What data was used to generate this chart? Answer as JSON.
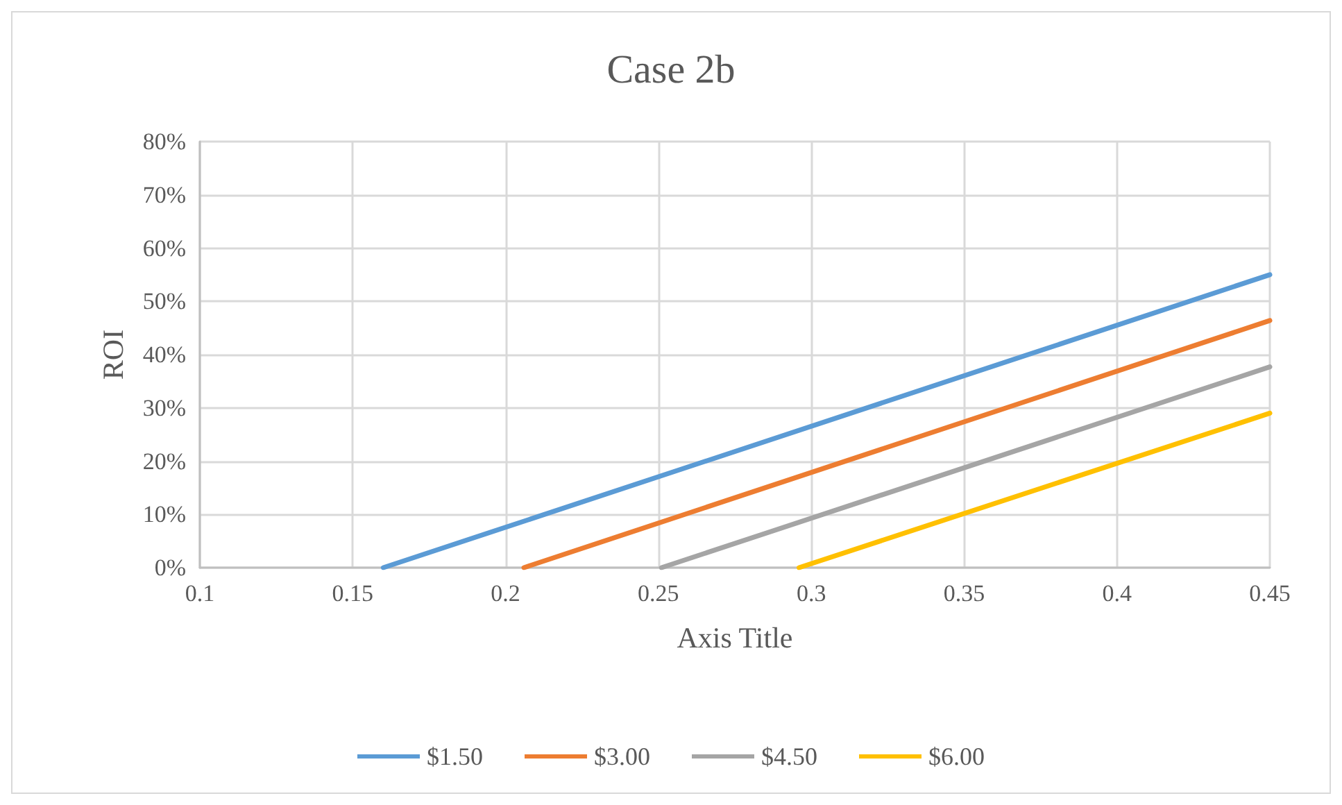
{
  "chart_data": {
    "type": "line",
    "title": "Case 2b",
    "xlabel": "Axis Title",
    "ylabel": "ROI",
    "xlim": [
      0.1,
      0.45
    ],
    "xticks": [
      0.1,
      0.15,
      0.2,
      0.25,
      0.3,
      0.35,
      0.4,
      0.45
    ],
    "ylim": [
      0,
      80
    ],
    "yticks": [
      {
        "value": 0,
        "label": "0%"
      },
      {
        "value": 10,
        "label": "10%"
      },
      {
        "value": 20,
        "label": "20%"
      },
      {
        "value": 30,
        "label": "30%"
      },
      {
        "value": 40,
        "label": "40%"
      },
      {
        "value": 50,
        "label": "50%"
      },
      {
        "value": 60,
        "label": "60%"
      },
      {
        "value": 70,
        "label": "70%"
      },
      {
        "value": 80,
        "label": "80%"
      }
    ],
    "grid": true,
    "legend": "bottom",
    "marker": "none",
    "line_style": "solid",
    "series": [
      {
        "name": "$1.50",
        "color": "#5b9bd5",
        "x": [
          0.16,
          0.45
        ],
        "values": [
          0,
          55
        ]
      },
      {
        "name": "$3.00",
        "color": "#ed7d31",
        "x": [
          0.206,
          0.45
        ],
        "values": [
          0,
          46.4
        ]
      },
      {
        "name": "$4.50",
        "color": "#a5a5a5",
        "x": [
          0.251,
          0.45
        ],
        "values": [
          0,
          37.7
        ]
      },
      {
        "name": "$6.00",
        "color": "#ffc000",
        "x": [
          0.296,
          0.45
        ],
        "values": [
          0,
          29
        ]
      }
    ]
  }
}
